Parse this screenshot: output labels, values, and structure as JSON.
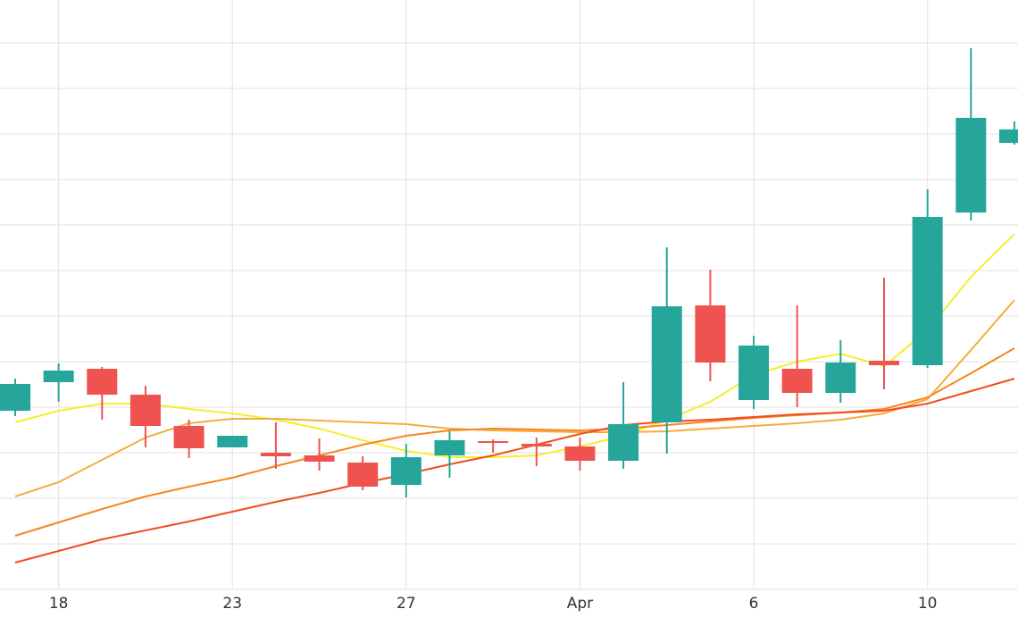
{
  "chart_data": {
    "type": "candlestick",
    "categories": [
      null,
      "18",
      null,
      null,
      null,
      "23",
      null,
      null,
      null,
      "27",
      null,
      null,
      null,
      "Apr",
      null,
      null,
      null,
      "6",
      null,
      null,
      null,
      "10",
      null,
      null
    ],
    "open": [
      200,
      232,
      247,
      218,
      183,
      159,
      153,
      150,
      142,
      117,
      150,
      166,
      163,
      160,
      144,
      187,
      318,
      212,
      247,
      220,
      256,
      251,
      422,
      500
    ],
    "high": [
      236,
      253,
      249,
      228,
      190,
      172,
      187,
      169,
      149,
      163,
      177,
      168,
      170,
      170,
      232,
      383,
      358,
      284,
      318,
      279,
      349,
      448,
      606,
      524
    ],
    "low": [
      194,
      210,
      190,
      159,
      147,
      159,
      135,
      133,
      111,
      103,
      125,
      153,
      138,
      133,
      135,
      152,
      233,
      202,
      204,
      209,
      224,
      248,
      413,
      498
    ],
    "close": [
      230,
      245,
      218,
      183,
      158,
      172,
      149,
      143,
      115,
      148,
      167,
      164,
      160,
      144,
      185,
      317,
      254,
      273,
      220,
      254,
      251,
      417,
      528,
      515
    ],
    "up_color": "#26a69a",
    "down_color": "#ef5350",
    "lines": [
      {
        "color": "#f4ee2e",
        "values": [
          187,
          200,
          208,
          208,
          202,
          197,
          190,
          180,
          167,
          155,
          148,
          148,
          150,
          160,
          172,
          190,
          210,
          240,
          255,
          264,
          250,
          290,
          350,
          398
        ]
      },
      {
        "color": "#f6ac3c",
        "values": [
          104,
          120,
          145,
          170,
          186,
          191,
          191,
          189,
          187,
          185,
          180,
          178,
          177,
          176,
          176,
          177,
          180,
          183,
          186,
          190,
          197,
          213,
          268,
          324
        ]
      },
      {
        "color": "#f7861f",
        "values": [
          60,
          75,
          90,
          104,
          115,
          125,
          138,
          150,
          162,
          172,
          178,
          180,
          179,
          178,
          180,
          184,
          188,
          192,
          195,
          198,
          202,
          215,
          242,
          270
        ]
      },
      {
        "color": "#f04e1c",
        "values": [
          30,
          43,
          56,
          66,
          76,
          87,
          98,
          108,
          119,
          129,
          140,
          150,
          162,
          174,
          184,
          188,
          190,
          193,
          196,
          198,
          200,
          208,
          222,
          236
        ]
      }
    ],
    "ylim": [
      0,
      660
    ],
    "yticks": [
      0,
      51,
      102,
      153,
      204,
      255,
      306,
      357,
      408,
      459,
      510,
      561,
      612
    ],
    "grid": true
  }
}
